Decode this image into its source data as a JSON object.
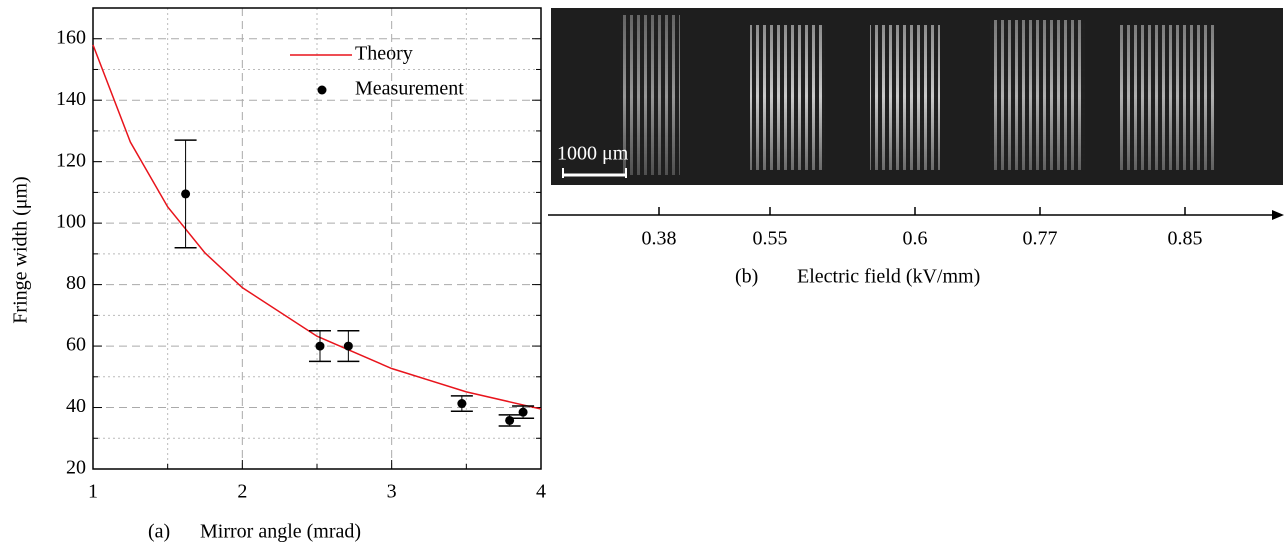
{
  "chart_data": [
    {
      "type": "scatter",
      "label": "(a)",
      "xlabel": "Mirror angle (mrad)",
      "ylabel": "Fringe width (μm)",
      "xlim": [
        1,
        4
      ],
      "xticks": [
        1,
        2,
        3,
        4
      ],
      "ylim": [
        20,
        170
      ],
      "yticks": [
        20,
        40,
        60,
        80,
        100,
        120,
        140,
        160
      ],
      "grid": true,
      "legend": "upper right",
      "series": [
        {
          "name": "Theory",
          "kind": "line",
          "color": "#e8141c",
          "x": [
            1,
            1.25,
            1.5,
            1.75,
            2,
            2.5,
            3,
            3.5,
            4
          ],
          "values": [
            158,
            126.4,
            105.3,
            90.3,
            79,
            63.2,
            52.7,
            45.1,
            39.5
          ]
        },
        {
          "name": "Measurement",
          "kind": "points",
          "color": "#000000",
          "x": [
            1.62,
            2.52,
            2.71,
            3.47,
            3.79,
            3.88
          ],
          "values": [
            109.5,
            60,
            60,
            41.3,
            35.8,
            38.5
          ],
          "errors": [
            17.5,
            5,
            5,
            2.5,
            1.8,
            2
          ]
        }
      ]
    },
    {
      "type": "image",
      "label": "(b)",
      "xlabel": "Electric field (kV/mm)",
      "scale_bar": "1000 μm",
      "categories": [
        "0.38",
        "0.55",
        "0.6",
        "0.77",
        "0.85"
      ]
    }
  ]
}
